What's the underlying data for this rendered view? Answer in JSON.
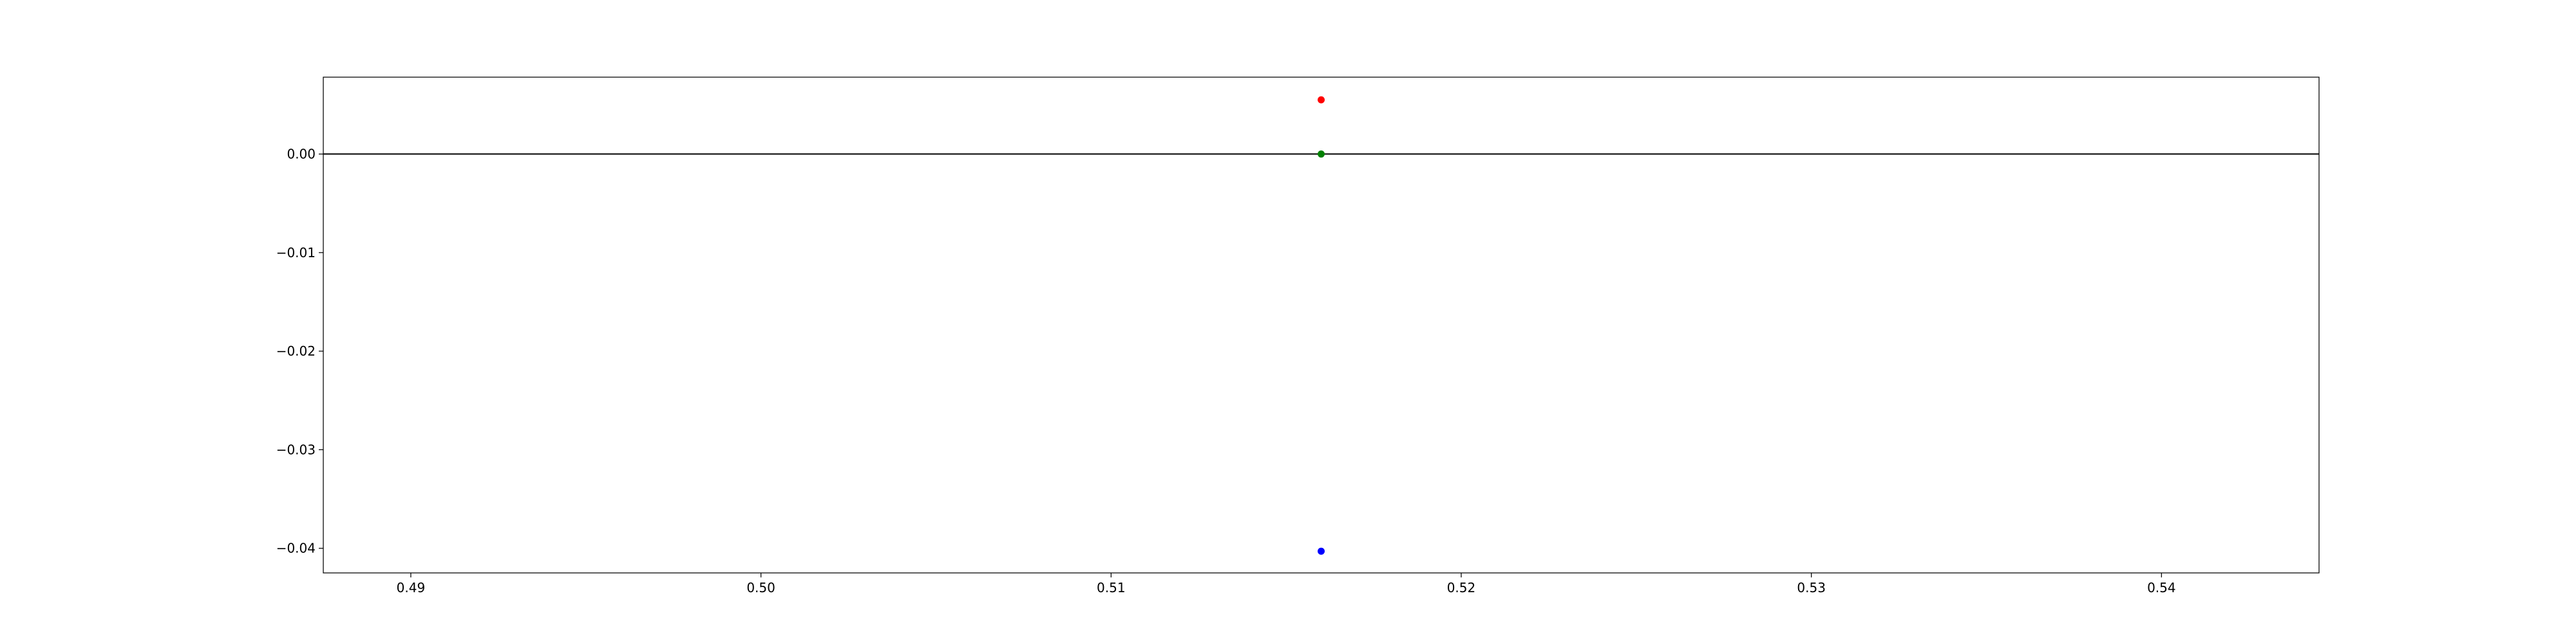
{
  "chart_data": {
    "type": "scatter",
    "title": "",
    "xlabel": "",
    "ylabel": "",
    "xlim": [
      0.4875,
      0.5445
    ],
    "ylim": [
      -0.0425,
      0.0078
    ],
    "grid": false,
    "legend": "none",
    "x_ticks": [
      0.49,
      0.5,
      0.51,
      0.52,
      0.53,
      0.54
    ],
    "x_tick_labels": [
      "0.49",
      "0.50",
      "0.51",
      "0.52",
      "0.53",
      "0.54"
    ],
    "y_ticks": [
      0.0,
      -0.01,
      -0.02,
      -0.03,
      -0.04
    ],
    "y_tick_labels": [
      "0.00",
      "−0.01",
      "−0.02",
      "−0.03",
      "−0.04"
    ],
    "hline": {
      "y": 0.0,
      "color": "#000000"
    },
    "series": [
      {
        "color": "#ff0000",
        "points": [
          {
            "x": 0.516,
            "y": 0.0055
          }
        ]
      },
      {
        "color": "#008000",
        "points": [
          {
            "x": 0.516,
            "y": 0.0
          }
        ]
      },
      {
        "color": "#0000ff",
        "points": [
          {
            "x": 0.516,
            "y": -0.0403
          }
        ]
      }
    ]
  }
}
